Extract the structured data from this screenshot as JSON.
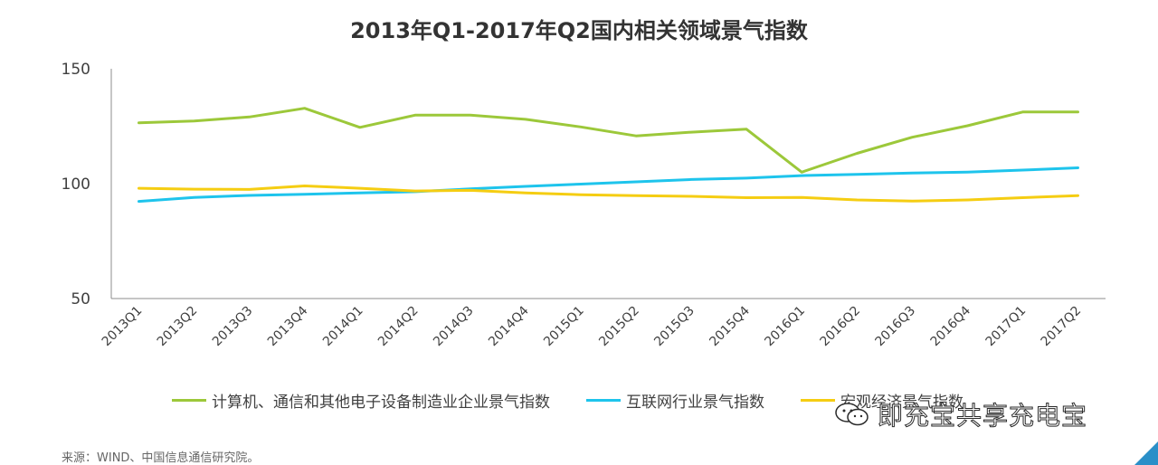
{
  "chart_data": {
    "type": "line",
    "title": "2013年Q1-2017年Q2国内相关领域景气指数",
    "categories": [
      "2013Q1",
      "2013Q2",
      "2013Q3",
      "2013Q4",
      "2014Q1",
      "2014Q2",
      "2014Q3",
      "2014Q4",
      "2015Q1",
      "2015Q2",
      "2015Q3",
      "2015Q4",
      "2016Q1",
      "2016Q2",
      "2016Q3",
      "2016Q4",
      "2017Q1",
      "2017Q2"
    ],
    "series": [
      {
        "name": "计算机、通信和其他电子设备制造业企业景气指数",
        "color": "#9cc83a",
        "values": [
          126.5,
          127.3,
          129,
          132.8,
          124.5,
          129.8,
          129.8,
          128,
          124.7,
          120.8,
          122.4,
          123.7,
          105,
          113.2,
          120.2,
          125.2,
          131.2,
          131.2
        ]
      },
      {
        "name": "互联网行业景气指数",
        "color": "#1ec4ec",
        "values": [
          92.3,
          94,
          94.9,
          95.4,
          96,
          96.5,
          97.7,
          98.8,
          99.8,
          100.8,
          101.8,
          102.4,
          103.5,
          104,
          104.6,
          105,
          105.9,
          106.9
        ]
      },
      {
        "name": "宏观经济景气指数",
        "color": "#f5cd12",
        "values": [
          98,
          97.6,
          97.5,
          99,
          98,
          96.8,
          97.1,
          96,
          95.2,
          94.8,
          94.5,
          93.9,
          94,
          92.9,
          92.4,
          92.9,
          93.9,
          94.8
        ]
      }
    ],
    "yticks": [
      50,
      100,
      150
    ],
    "ylim": [
      50,
      150
    ],
    "grid": false,
    "legend_position": "bottom"
  },
  "source_note": "来源：WIND、中国信息通信研究院。",
  "watermark_text": "即充宝共享充电宝"
}
